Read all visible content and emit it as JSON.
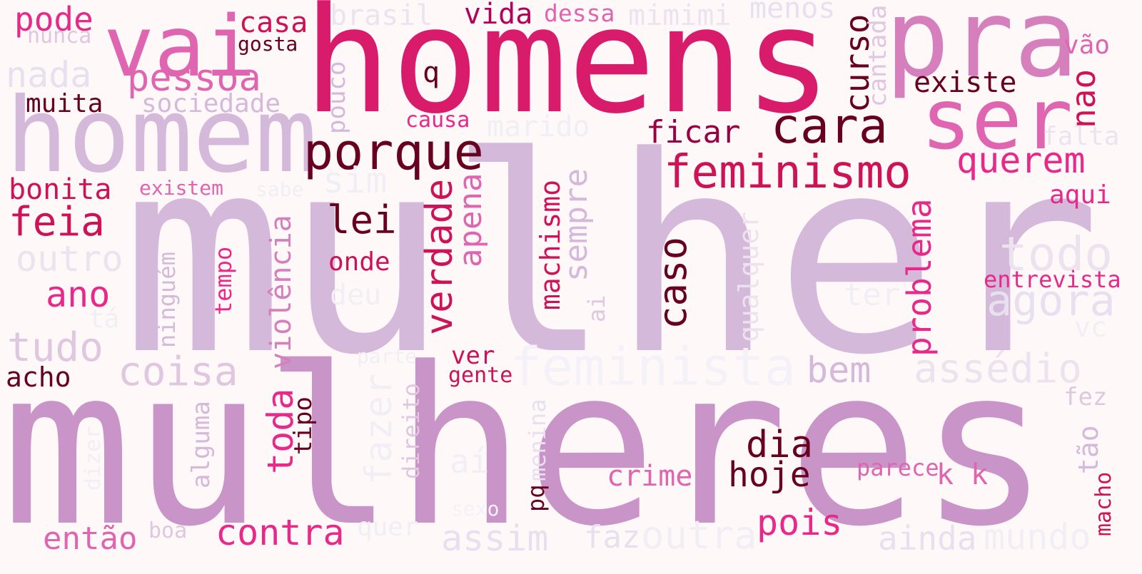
{
  "palette": {
    "background": "#fff8f8",
    "colors": [
      "#d4b9da",
      "#c994c7",
      "#df65b0",
      "#e7298a",
      "#ce1256",
      "#980043",
      "#67001f",
      "#e7e1ef",
      "#f1eef6"
    ]
  },
  "words": [
    {
      "id": "mulher",
      "text": "mulher",
      "color": "#d4b9da"
    },
    {
      "id": "mulheres",
      "text": "mulheres",
      "color": "#c994c7"
    },
    {
      "id": "homens",
      "text": "homens",
      "color": "#d81b6a"
    },
    {
      "id": "homem",
      "text": "homem",
      "color": "#d4b9da"
    },
    {
      "id": "pra",
      "text": "pra",
      "color": "#d580bc"
    },
    {
      "id": "vai",
      "text": "vai",
      "color": "#df65b0"
    },
    {
      "id": "ser",
      "text": "ser",
      "color": "#df65b0"
    },
    {
      "id": "pode",
      "text": "pode",
      "color": "#e7298a"
    },
    {
      "id": "nunca",
      "text": "nunca",
      "color": "#e0c7e0"
    },
    {
      "id": "casa",
      "text": "casa",
      "color": "#ce1256"
    },
    {
      "id": "gosta",
      "text": "gosta",
      "color": "#67001f"
    },
    {
      "id": "brasil",
      "text": "brasil",
      "color": "#ece3ef"
    },
    {
      "id": "vida",
      "text": "vida",
      "color": "#b3005a"
    },
    {
      "id": "dessa",
      "text": "dessa",
      "color": "#df65b0"
    },
    {
      "id": "mimimi",
      "text": "mimimi",
      "color": "#ece3ef"
    },
    {
      "id": "menos",
      "text": "menos",
      "color": "#e7e1ef"
    },
    {
      "id": "curso",
      "text": "curso",
      "color": "#67001f"
    },
    {
      "id": "cantada",
      "text": "cantada",
      "color": "#e0c7e0"
    },
    {
      "id": "vao",
      "text": "vão",
      "color": "#df65b0"
    },
    {
      "id": "nada",
      "text": "nada",
      "color": "#e7e1ef"
    },
    {
      "id": "pessoa",
      "text": "pessoa",
      "color": "#df65b0"
    },
    {
      "id": "q",
      "text": "q",
      "color": "#67001f"
    },
    {
      "id": "pouco",
      "text": "pouco",
      "color": "#d4b9da"
    },
    {
      "id": "existe",
      "text": "existe",
      "color": "#67001f"
    },
    {
      "id": "nao",
      "text": "nao",
      "color": "#ce1256"
    },
    {
      "id": "muita",
      "text": "muita",
      "color": "#67001f"
    },
    {
      "id": "sociedade",
      "text": "sociedade",
      "color": "#d4b9da"
    },
    {
      "id": "causa",
      "text": "causa",
      "color": "#e7298a"
    },
    {
      "id": "marido",
      "text": "marido",
      "color": "#f1eef6"
    },
    {
      "id": "cara",
      "text": "cara",
      "color": "#67001f"
    },
    {
      "id": "ficar",
      "text": "ficar",
      "color": "#980043"
    },
    {
      "id": "falta",
      "text": "falta",
      "color": "#ece3ef"
    },
    {
      "id": "porque",
      "text": "porque",
      "color": "#67001f"
    },
    {
      "id": "feminismo",
      "text": "feminismo",
      "color": "#ce1256"
    },
    {
      "id": "querem",
      "text": "querem",
      "color": "#e7298a"
    },
    {
      "id": "bonita",
      "text": "bonita",
      "color": "#ce1256"
    },
    {
      "id": "existem",
      "text": "existem",
      "color": "#df65b0"
    },
    {
      "id": "sabe",
      "text": "sabe",
      "color": "#f1eef6"
    },
    {
      "id": "sim",
      "text": "sim",
      "color": "#f1eef6"
    },
    {
      "id": "aqui",
      "text": "aqui",
      "color": "#e7298a"
    },
    {
      "id": "feia",
      "text": "feia",
      "color": "#ce1256"
    },
    {
      "id": "lei",
      "text": "lei",
      "color": "#67001f"
    },
    {
      "id": "apena",
      "text": "apena",
      "color": "#df65b0"
    },
    {
      "id": "machismo",
      "text": "machismo",
      "color": "#ce1256"
    },
    {
      "id": "sempre",
      "text": "sempre",
      "color": "#d4b9da"
    },
    {
      "id": "caso",
      "text": "caso",
      "color": "#67001f"
    },
    {
      "id": "qualquer",
      "text": "qualquer",
      "color": "#ece3ef"
    },
    {
      "id": "problema",
      "text": "problema",
      "color": "#e7298a"
    },
    {
      "id": "todo",
      "text": "todo",
      "color": "#ece3ef"
    },
    {
      "id": "outro",
      "text": "outro",
      "color": "#ece3ef"
    },
    {
      "id": "ninguem",
      "text": "ninguém",
      "color": "#d4b9da"
    },
    {
      "id": "tempo",
      "text": "tempo",
      "color": "#e7298a"
    },
    {
      "id": "violencia",
      "text": "violência",
      "color": "#d580bc"
    },
    {
      "id": "onde",
      "text": "onde",
      "color": "#ce1256"
    },
    {
      "id": "verdade",
      "text": "verdade",
      "color": "#ce1256"
    },
    {
      "id": "entrevista",
      "text": "entrevista",
      "color": "#e7298a"
    },
    {
      "id": "ano",
      "text": "ano",
      "color": "#e7298a"
    },
    {
      "id": "deu",
      "text": "deu",
      "color": "#f1eef6"
    },
    {
      "id": "ai-rot",
      "text": "ai",
      "color": "#e0c7e0"
    },
    {
      "id": "ter",
      "text": "ter",
      "color": "#f1eef6"
    },
    {
      "id": "agora",
      "text": "agora",
      "color": "#e7e1ef"
    },
    {
      "id": "ta",
      "text": "tá",
      "color": "#f1eef6"
    },
    {
      "id": "vc",
      "text": "vc",
      "color": "#f1eef6"
    },
    {
      "id": "tudo",
      "text": "tudo",
      "color": "#e0c7e0"
    },
    {
      "id": "feminista",
      "text": "feminista",
      "color": "#f5f1f8"
    },
    {
      "id": "parte",
      "text": "parte",
      "color": "#f1eef6"
    },
    {
      "id": "ver",
      "text": "ver",
      "color": "#ce1256"
    },
    {
      "id": "bem",
      "text": "bem",
      "color": "#d4b9da"
    },
    {
      "id": "assedio",
      "text": "assédio",
      "color": "#ece3ef"
    },
    {
      "id": "acho",
      "text": "acho",
      "color": "#67001f"
    },
    {
      "id": "coisa",
      "text": "coisa",
      "color": "#e0c7e0"
    },
    {
      "id": "gente",
      "text": "gente",
      "color": "#ce1256"
    },
    {
      "id": "fez",
      "text": "fez",
      "color": "#e0c7e0"
    },
    {
      "id": "toda",
      "text": "toda",
      "color": "#e7298a"
    },
    {
      "id": "tipo",
      "text": "tipo",
      "color": "#67001f"
    },
    {
      "id": "fazer",
      "text": "fazer",
      "color": "#f1eef6"
    },
    {
      "id": "direito",
      "text": "direito",
      "color": "#e0c7e0"
    },
    {
      "id": "alguma",
      "text": "alguma",
      "color": "#d4b9da"
    },
    {
      "id": "menina",
      "text": "menina",
      "color": "#e7e1ef"
    },
    {
      "id": "dia",
      "text": "dia",
      "color": "#67001f"
    },
    {
      "id": "ai-acc",
      "text": "aí",
      "color": "#f1eef6"
    },
    {
      "id": "tao",
      "text": "tão",
      "color": "#d4b9da"
    },
    {
      "id": "dizer",
      "text": "dizer",
      "color": "#f1eef6"
    },
    {
      "id": "crime",
      "text": "crime",
      "color": "#df65b0"
    },
    {
      "id": "hoje",
      "text": "hoje",
      "color": "#67001f"
    },
    {
      "id": "parece",
      "text": "parece",
      "color": "#df65b0"
    },
    {
      "id": "kk",
      "text": "k k",
      "color": "#df65b0"
    },
    {
      "id": "pq",
      "text": "pq",
      "color": "#67001f"
    },
    {
      "id": "sexo",
      "text": "sexo",
      "color": "#f5f1f8"
    },
    {
      "id": "pois",
      "text": "pois",
      "color": "#e7298a"
    },
    {
      "id": "macho",
      "text": "macho",
      "color": "#ce1256"
    },
    {
      "id": "entao",
      "text": "então",
      "color": "#df65b0"
    },
    {
      "id": "boa",
      "text": "boa",
      "color": "#e0c7e0"
    },
    {
      "id": "contra",
      "text": "contra",
      "color": "#e7298a"
    },
    {
      "id": "quer",
      "text": "quer",
      "color": "#f1eef6"
    },
    {
      "id": "assim",
      "text": "assim",
      "color": "#e7e1ef"
    },
    {
      "id": "faz",
      "text": "faz",
      "color": "#e7e1ef"
    },
    {
      "id": "outra",
      "text": "outra",
      "color": "#f1eef6"
    },
    {
      "id": "ainda",
      "text": "ainda",
      "color": "#e7e1ef"
    },
    {
      "id": "mundo",
      "text": "mundo",
      "color": "#f1eef6"
    }
  ]
}
